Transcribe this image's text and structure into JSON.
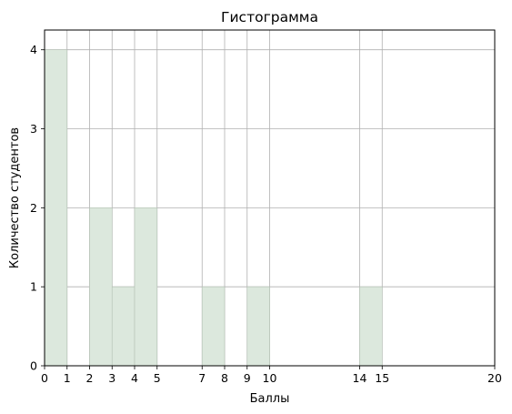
{
  "chart_data": {
    "type": "bar",
    "title": "Гистограмма",
    "xlabel": "Баллы",
    "ylabel": "Количество студентов",
    "xlim": [
      0,
      20
    ],
    "ylim": [
      0,
      4.25
    ],
    "grid": true,
    "x_ticks": [
      0,
      1,
      2,
      3,
      4,
      5,
      7,
      8,
      9,
      10,
      14,
      15,
      20
    ],
    "y_ticks": [
      0,
      1,
      2,
      3,
      4
    ],
    "bins": [
      {
        "x0": 0,
        "x1": 1,
        "count": 4
      },
      {
        "x0": 2,
        "x1": 3,
        "count": 2
      },
      {
        "x0": 3,
        "x1": 4,
        "count": 1
      },
      {
        "x0": 4,
        "x1": 5,
        "count": 2
      },
      {
        "x0": 7,
        "x1": 8,
        "count": 1
      },
      {
        "x0": 9,
        "x1": 10,
        "count": 1
      },
      {
        "x0": 14,
        "x1": 15,
        "count": 1
      }
    ],
    "colors": {
      "bar_fill": "#dce8dd",
      "bar_edge": "#b5c2b5",
      "grid": "#b0b0b0"
    }
  }
}
